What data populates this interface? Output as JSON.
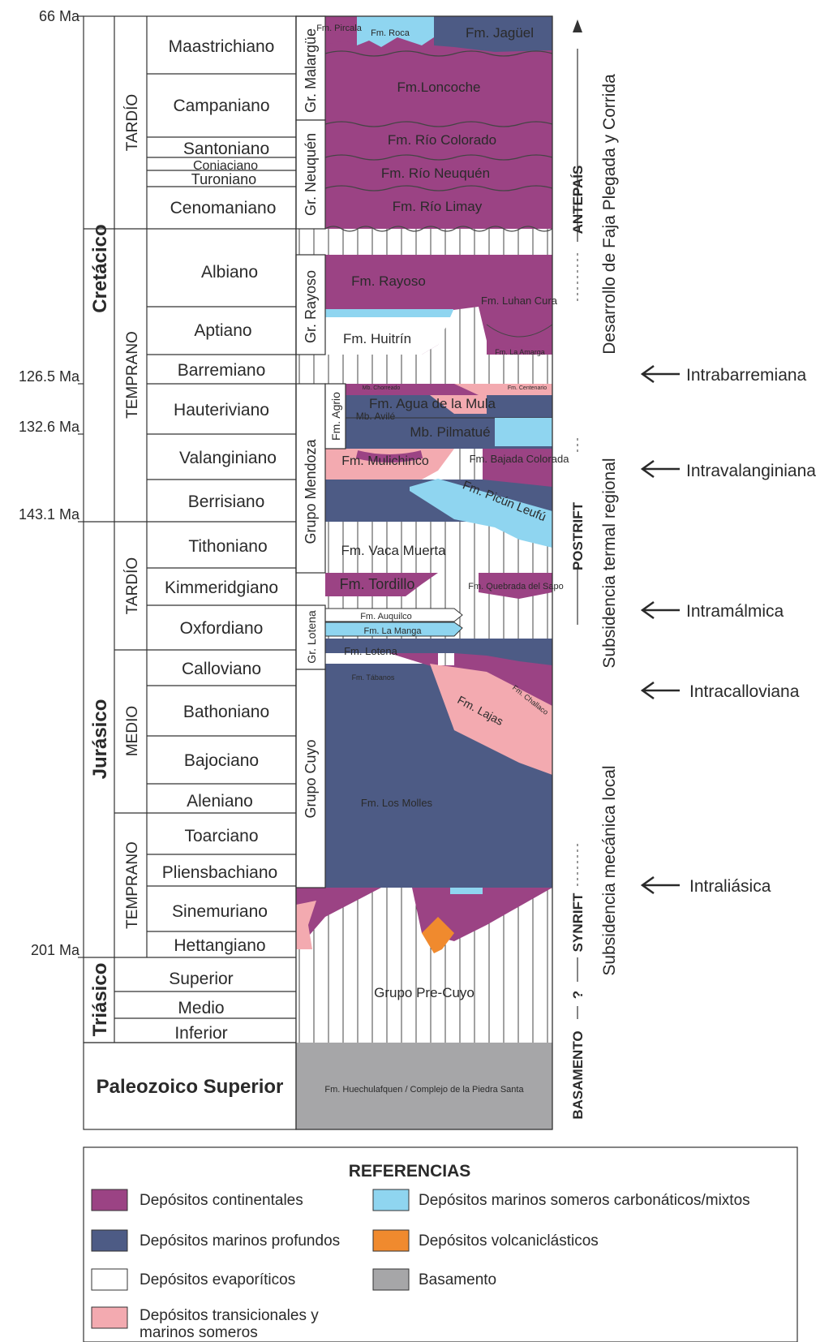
{
  "colors": {
    "continental": "#9b4384",
    "deep_marine": "#4d5b85",
    "evaporitic": "#ffffff",
    "transitional": "#f3aab0",
    "carbonate": "#8fd5f0",
    "volcaniclastic": "#f08a2e",
    "basement": "#a6a6a8",
    "line": "#333333"
  },
  "ages": [
    "66 Ma",
    "126.5 Ma",
    "132.6 Ma",
    "143.1 Ma",
    "201 Ma"
  ],
  "periods": [
    "Cretácico",
    "Jurásico",
    "Triásico",
    "Paleozoico Superior"
  ],
  "epochs": [
    "TARDÍO",
    "TEMPRANO",
    "TARDÍO",
    "MEDIO",
    "TEMPRANO"
  ],
  "stages": [
    "Maastrichiano",
    "Campaniano",
    "Santoniano",
    "Coniaciano",
    "Turoniano",
    "Cenomaniano",
    "Albiano",
    "Aptiano",
    "Barremiano",
    "Hauteriviano",
    "Valanginiano",
    "Berrisiano",
    "Tithoniano",
    "Kimmeridgiano",
    "Oxfordiano",
    "Calloviano",
    "Bathoniano",
    "Bajociano",
    "Aleniano",
    "Toarciano",
    "Pliensbachiano",
    "Sinemuriano",
    "Hettangiano",
    "Superior",
    "Medio",
    "Inferior"
  ],
  "groups": [
    "Gr. Malargüe",
    "Gr. Neuquén",
    "Gr. Rayoso",
    "Grupo Mendoza",
    "Fm. Agrio",
    "Gr. Lotena",
    "Grupo Cuyo"
  ],
  "formations": [
    "Fm. Pircala",
    "Fm. Roca",
    "Fm. Jagüel",
    "Fm.Loncoche",
    "Fm. Río Colorado",
    "Fm. Río Neuquén",
    "Fm. Río Limay",
    "Fm. Rayoso",
    "Fm. Luhan Cura",
    "Fm. Huitrín",
    "Fm. La Amarga",
    "Mb. Chorreado",
    "Fm. Centenario",
    "Fm. Agua de la Mula",
    "Mb. Avilé",
    "Mb. Pilmatué",
    "Fm. Mulichinco",
    "Fm. Bajada Colorada",
    "Fm. Picún Leufú",
    "Fm. Vaca Muerta",
    "Fm. Tordillo",
    "Fm. Quebrada del Sapo",
    "Fm. Auquilco",
    "Fm. La Manga",
    "Fm. Lotena",
    "Fm. Tábanos",
    "Fm. Challaco",
    "Fm. Lajas",
    "Fm. Los Molles",
    "Grupo Pre-Cuyo",
    "Fm. Huechulafquen / Complejo de la Piedra Santa"
  ],
  "tectonic": {
    "stages": [
      "ANTEPAÍS",
      "POSTRIFT",
      "SYNRIFT",
      "?",
      "BASAMENTO"
    ],
    "processes": [
      "Desarrollo de Faja Plegada y Corrida",
      "Subsidencia termal regional",
      "Subsidencia mecánica local"
    ]
  },
  "unconformities": [
    "Intrabarremiana",
    "Intravalanginiana",
    "Intramálmica",
    "Intracalloviana",
    "Intraliásica"
  ],
  "legend": {
    "title": "REFERENCIAS",
    "items": [
      "Depósitos continentales",
      "Depósitos marinos profundos",
      "Depósitos evaporíticos",
      "Depósitos transicionales y",
      "marinos someros",
      "Depósitos marinos someros carbonáticos/mixtos",
      "Depósitos volcaniclásticos",
      "Basamento"
    ]
  }
}
